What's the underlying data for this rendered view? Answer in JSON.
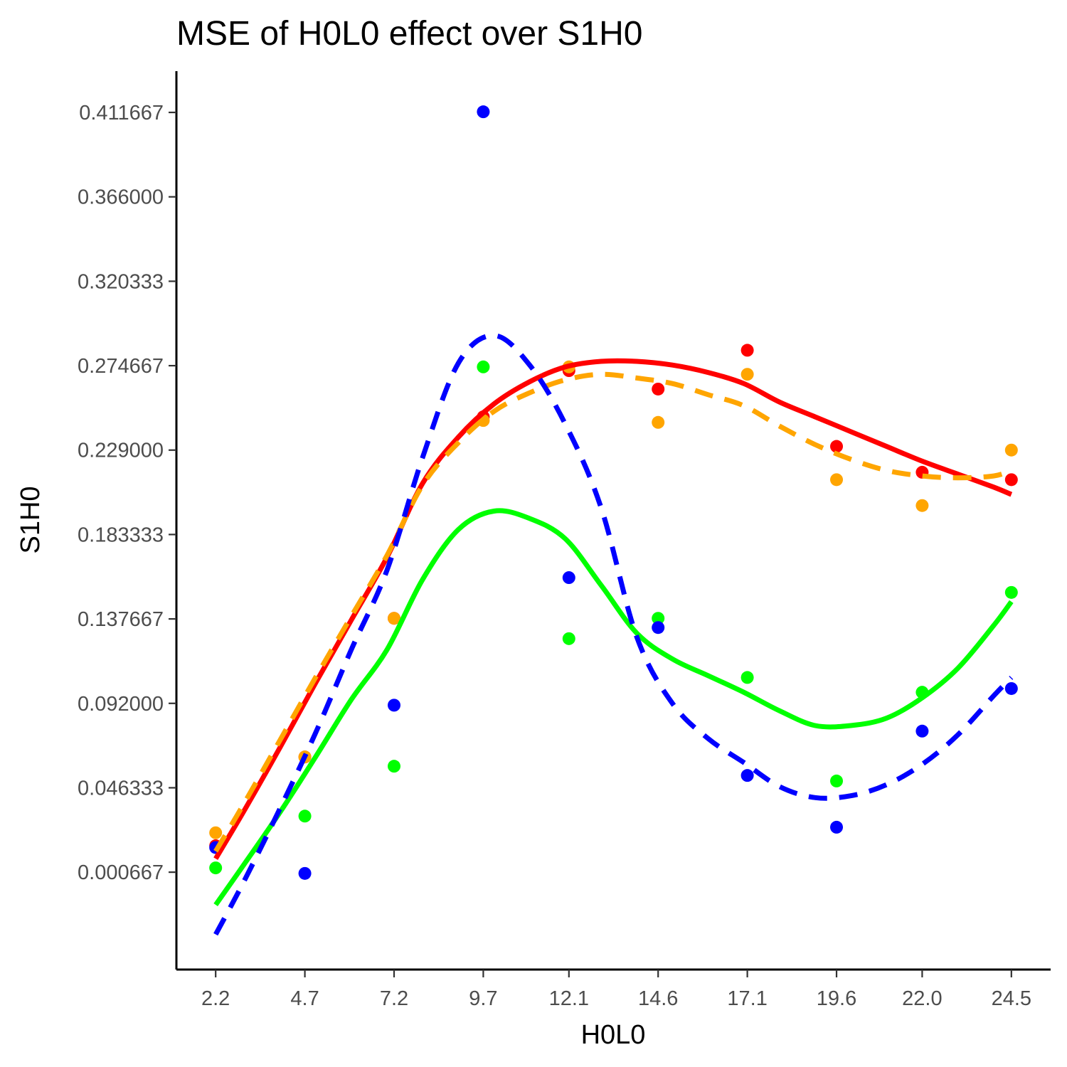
{
  "chart_data": {
    "type": "scatter",
    "title": "MSE of H0L0 effect over  S1H0",
    "xlabel": "H0L0",
    "ylabel": "S1H0",
    "x_ticks": [
      "2.2",
      "4.7",
      "7.2",
      "9.7",
      "12.1",
      "14.6",
      "17.1",
      "19.6",
      "22.0",
      "24.5"
    ],
    "y_ticks": [
      "0.000667",
      "0.046333",
      "0.092000",
      "0.137667",
      "0.183333",
      "0.229000",
      "0.274667",
      "0.320333",
      "0.366000",
      "0.411667"
    ],
    "x": [
      2.2,
      4.7,
      7.2,
      9.7,
      12.1,
      14.6,
      17.1,
      19.6,
      22.0,
      24.5
    ],
    "xlim": [
      1.1,
      25.6
    ],
    "ylim": [
      -0.052,
      0.434
    ],
    "grid": false,
    "legend": "none",
    "series": [
      {
        "color": "#ff0000",
        "line_style": "solid",
        "points": [
          0.015,
          0.063,
          0.138,
          0.247,
          0.272,
          0.262,
          0.283,
          0.231,
          0.217,
          0.213
        ],
        "smooth": [
          [
            2.2,
            0.008
          ],
          [
            3.0,
            0.034
          ],
          [
            4.0,
            0.068
          ],
          [
            5.0,
            0.103
          ],
          [
            6.0,
            0.137
          ],
          [
            7.0,
            0.171
          ],
          [
            8.0,
            0.211
          ],
          [
            9.0,
            0.236
          ],
          [
            10.0,
            0.254
          ],
          [
            11.0,
            0.266
          ],
          [
            12.0,
            0.274
          ],
          [
            13.0,
            0.277
          ],
          [
            14.0,
            0.277
          ],
          [
            15.0,
            0.275
          ],
          [
            16.0,
            0.271
          ],
          [
            17.0,
            0.265
          ],
          [
            18.0,
            0.255
          ],
          [
            19.0,
            0.247
          ],
          [
            20.0,
            0.239
          ],
          [
            21.0,
            0.231
          ],
          [
            22.0,
            0.223
          ],
          [
            23.0,
            0.216
          ],
          [
            24.0,
            0.209
          ],
          [
            24.5,
            0.205
          ]
        ]
      },
      {
        "color": "#ffa500",
        "line_style": "dashed",
        "points": [
          0.022,
          0.063,
          0.138,
          0.245,
          0.274,
          0.244,
          0.27,
          0.213,
          0.199,
          0.229
        ],
        "smooth": [
          [
            2.2,
            0.012
          ],
          [
            3.0,
            0.038
          ],
          [
            4.0,
            0.072
          ],
          [
            5.0,
            0.106
          ],
          [
            6.0,
            0.139
          ],
          [
            7.0,
            0.172
          ],
          [
            8.0,
            0.21
          ],
          [
            9.0,
            0.233
          ],
          [
            10.0,
            0.25
          ],
          [
            11.0,
            0.26
          ],
          [
            12.0,
            0.267
          ],
          [
            13.0,
            0.27
          ],
          [
            14.0,
            0.268
          ],
          [
            15.0,
            0.265
          ],
          [
            16.0,
            0.259
          ],
          [
            17.0,
            0.253
          ],
          [
            18.0,
            0.242
          ],
          [
            19.0,
            0.232
          ],
          [
            20.0,
            0.224
          ],
          [
            21.0,
            0.218
          ],
          [
            22.0,
            0.215
          ],
          [
            23.0,
            0.214
          ],
          [
            24.0,
            0.215
          ],
          [
            24.5,
            0.218
          ]
        ]
      },
      {
        "color": "#00ff00",
        "line_style": "solid",
        "points": [
          0.003,
          0.031,
          0.058,
          0.274,
          0.127,
          0.138,
          0.106,
          0.05,
          0.098,
          0.152
        ],
        "smooth": [
          [
            2.2,
            -0.017
          ],
          [
            3.0,
            0.005
          ],
          [
            4.0,
            0.033
          ],
          [
            5.0,
            0.063
          ],
          [
            6.0,
            0.094
          ],
          [
            7.0,
            0.121
          ],
          [
            8.0,
            0.159
          ],
          [
            9.0,
            0.186
          ],
          [
            10.0,
            0.196
          ],
          [
            11.0,
            0.192
          ],
          [
            12.0,
            0.181
          ],
          [
            13.0,
            0.156
          ],
          [
            14.0,
            0.13
          ],
          [
            15.0,
            0.116
          ],
          [
            16.0,
            0.107
          ],
          [
            17.0,
            0.098
          ],
          [
            18.0,
            0.088
          ],
          [
            19.0,
            0.08
          ],
          [
            20.0,
            0.08
          ],
          [
            21.0,
            0.084
          ],
          [
            22.0,
            0.095
          ],
          [
            23.0,
            0.111
          ],
          [
            24.0,
            0.134
          ],
          [
            24.5,
            0.147
          ]
        ]
      },
      {
        "color": "#0000ff",
        "line_style": "dashed",
        "points": [
          0.014,
          0.0,
          0.091,
          0.412,
          0.16,
          0.133,
          0.053,
          0.025,
          0.077,
          0.1
        ],
        "smooth": [
          [
            2.2,
            -0.033
          ],
          [
            3.0,
            -0.004
          ],
          [
            4.0,
            0.035
          ],
          [
            5.0,
            0.076
          ],
          [
            6.0,
            0.121
          ],
          [
            7.0,
            0.164
          ],
          [
            8.0,
            0.225
          ],
          [
            9.0,
            0.276
          ],
          [
            10.0,
            0.291
          ],
          [
            11.0,
            0.275
          ],
          [
            12.0,
            0.243
          ],
          [
            13.0,
            0.198
          ],
          [
            14.0,
            0.128
          ],
          [
            15.0,
            0.092
          ],
          [
            16.0,
            0.073
          ],
          [
            17.0,
            0.06
          ],
          [
            18.0,
            0.047
          ],
          [
            19.0,
            0.041
          ],
          [
            20.0,
            0.042
          ],
          [
            21.0,
            0.048
          ],
          [
            22.0,
            0.059
          ],
          [
            23.0,
            0.075
          ],
          [
            24.0,
            0.096
          ],
          [
            24.5,
            0.106
          ]
        ]
      }
    ]
  }
}
